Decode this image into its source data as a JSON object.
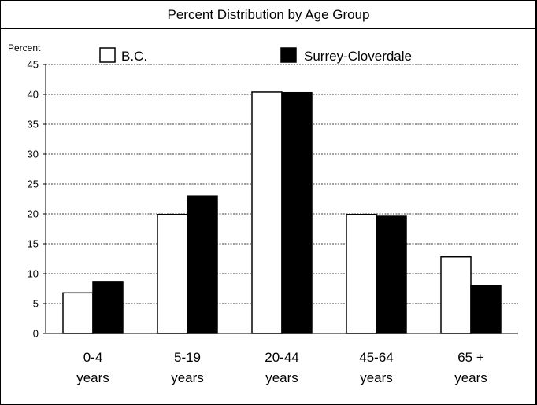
{
  "chart_data": {
    "type": "bar",
    "title": "Percent Distribution by Age Group",
    "ylabel": "Percent",
    "xlabel": "",
    "ylim": [
      0,
      45
    ],
    "yticks": [
      0,
      5,
      10,
      15,
      20,
      25,
      30,
      35,
      40,
      45
    ],
    "grid": true,
    "legend_position": "top",
    "categories": [
      [
        "0-4",
        "years"
      ],
      [
        "5-19",
        "years"
      ],
      [
        "20-44",
        "years"
      ],
      [
        "45-64",
        "years"
      ],
      [
        "65 +",
        "years"
      ]
    ],
    "series": [
      {
        "name": "B.C.",
        "color": "#ffffff",
        "values": [
          6.8,
          19.9,
          40.4,
          19.9,
          12.8
        ]
      },
      {
        "name": "Surrey-Cloverdale",
        "color": "#000000",
        "values": [
          8.7,
          23.0,
          40.3,
          19.6,
          8.0
        ]
      }
    ]
  }
}
